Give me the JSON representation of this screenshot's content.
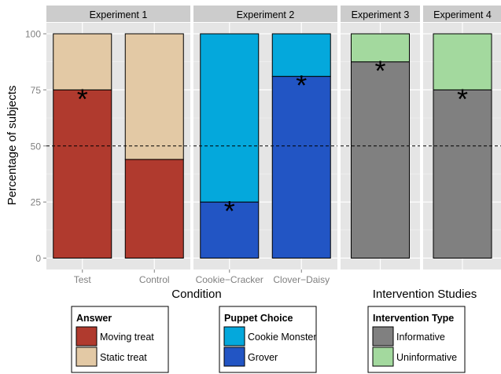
{
  "chart_data": {
    "type": "bar",
    "subtype": "stacked-percent",
    "ylabel": "Percentage of subjects",
    "yticks": [
      0,
      25,
      50,
      75,
      100
    ],
    "ylim": [
      0,
      100
    ],
    "reference_line": {
      "value": 50,
      "style": "dashed"
    },
    "grid": true,
    "significance_marker": "*",
    "panels": [
      {
        "title": "Experiment 1",
        "categories": [
          "Test",
          "Control"
        ],
        "series": [
          {
            "name": "Moving treat",
            "color": "#B03A2E",
            "values": [
              75,
              44
            ]
          },
          {
            "name": "Static treat",
            "color": "#E3C9A5",
            "values": [
              25,
              56
            ]
          }
        ],
        "starred": [
          {
            "category": "Test",
            "at": 75
          }
        ]
      },
      {
        "title": "Experiment 2",
        "categories": [
          "Cookie−Cracker",
          "Clover−Daisy"
        ],
        "series": [
          {
            "name": "Grover",
            "color": "#2255C4",
            "values": [
              25,
              81
            ]
          },
          {
            "name": "Cookie Monster",
            "color": "#04A8DC",
            "values": [
              75,
              19
            ]
          }
        ],
        "starred": [
          {
            "category": "Cookie−Cracker",
            "at": 25
          },
          {
            "category": "Clover−Daisy",
            "at": 81
          }
        ]
      },
      {
        "title": "Experiment 3",
        "categories": [
          ""
        ],
        "series": [
          {
            "name": "Informative",
            "color": "#808080",
            "values": [
              87.5
            ]
          },
          {
            "name": "Uninformative",
            "color": "#A3D99E",
            "values": [
              12.5
            ]
          }
        ],
        "starred": [
          {
            "category": "",
            "at": 87.5
          }
        ]
      },
      {
        "title": "Experiment 4",
        "categories": [
          ""
        ],
        "series": [
          {
            "name": "Informative",
            "color": "#808080",
            "values": [
              75
            ]
          },
          {
            "name": "Uninformative",
            "color": "#A3D99E",
            "values": [
              25
            ]
          }
        ],
        "starred": [
          {
            "category": "",
            "at": 75
          }
        ]
      }
    ],
    "xlabels": [
      {
        "text": "Condition"
      },
      {
        "text": "Intervention Studies"
      }
    ],
    "legends": [
      {
        "title": "Answer",
        "entries": [
          {
            "label": "Moving treat",
            "color": "#B03A2E"
          },
          {
            "label": "Static treat",
            "color": "#E3C9A5"
          }
        ]
      },
      {
        "title": "Puppet Choice",
        "entries": [
          {
            "label": "Cookie Monster",
            "color": "#04A8DC"
          },
          {
            "label": "Grover",
            "color": "#2255C4"
          }
        ]
      },
      {
        "title": "Intervention Type",
        "entries": [
          {
            "label": "Informative",
            "color": "#808080"
          },
          {
            "label": "Uninformative",
            "color": "#A3D99E"
          }
        ]
      }
    ],
    "colors": {
      "panel_bg": "#E5E5E5",
      "strip_bg": "#CCCCCC",
      "grid": "#FFFFFF",
      "tick_text": "#808080"
    }
  }
}
